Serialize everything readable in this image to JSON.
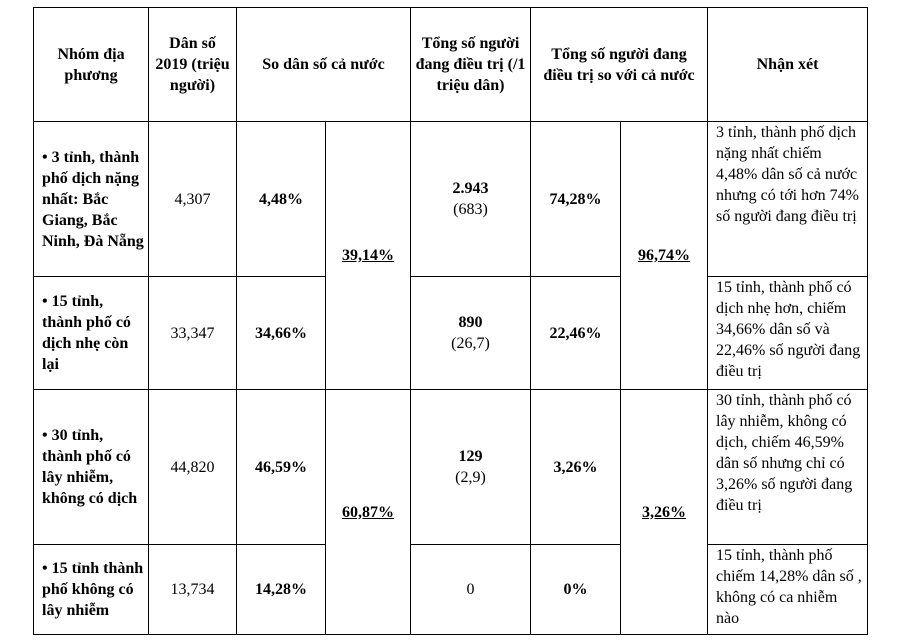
{
  "headers": {
    "group": "Nhóm địa phương",
    "population": "Dân số 2019 (triệu người)",
    "pop_share": "So dân số cả nước",
    "treating": "Tổng số người đang điều trị (/1 triệu dân)",
    "treating_share": "Tổng số người đang điều trị so với cả nước",
    "comment": "Nhận xét"
  },
  "rows": [
    {
      "group": "• 3 tỉnh, thành phố dịch nặng nhất: Bắc Giang, Bắc Ninh, Đà Nẵng",
      "population": "4,307",
      "pop_share": "4,48%",
      "treating": "2.943",
      "per_million": "(683)",
      "treating_share": "74,28%",
      "comment": "3 tỉnh, thành phố dịch nặng nhất chiếm 4,48% dân số cả nước nhưng có tới hơn 74% số người đang điều trị"
    },
    {
      "group": "• 15 tỉnh, thành phố có dịch nhẹ còn lại",
      "population": "33,347",
      "pop_share": "34,66%",
      "treating": "890",
      "per_million": "(26,7)",
      "treating_share": "22,46%",
      "comment": "15 tỉnh, thành phố có dịch nhẹ hơn, chiếm 34,66% dân số và 22,46% số người đang điều trị"
    },
    {
      "group": "• 30 tỉnh, thành phố có lây nhiễm, không có dịch",
      "population": "44,820",
      "pop_share": "46,59%",
      "treating": "129",
      "per_million": "(2,9)",
      "treating_share": "3,26%",
      "comment": "30 tỉnh, thành phố có lây nhiễm, không có dịch, chiếm 46,59% dân số nhưng chỉ có 3,26% số người đang điều trị"
    },
    {
      "group": "• 15 tỉnh thành phố không có lây nhiễm",
      "population": "13,734",
      "pop_share": "14,28%",
      "treating": "0",
      "per_million": "",
      "treating_share": "0%",
      "comment": "15 tỉnh, thành phố chiếm 14,28% dân số , không có ca nhiễm nào"
    }
  ],
  "merged": {
    "pop_share_top": "39,14%",
    "pop_share_bottom": "60,87%",
    "treating_share_top": "96,74%",
    "treating_share_bottom": "3,26%"
  }
}
